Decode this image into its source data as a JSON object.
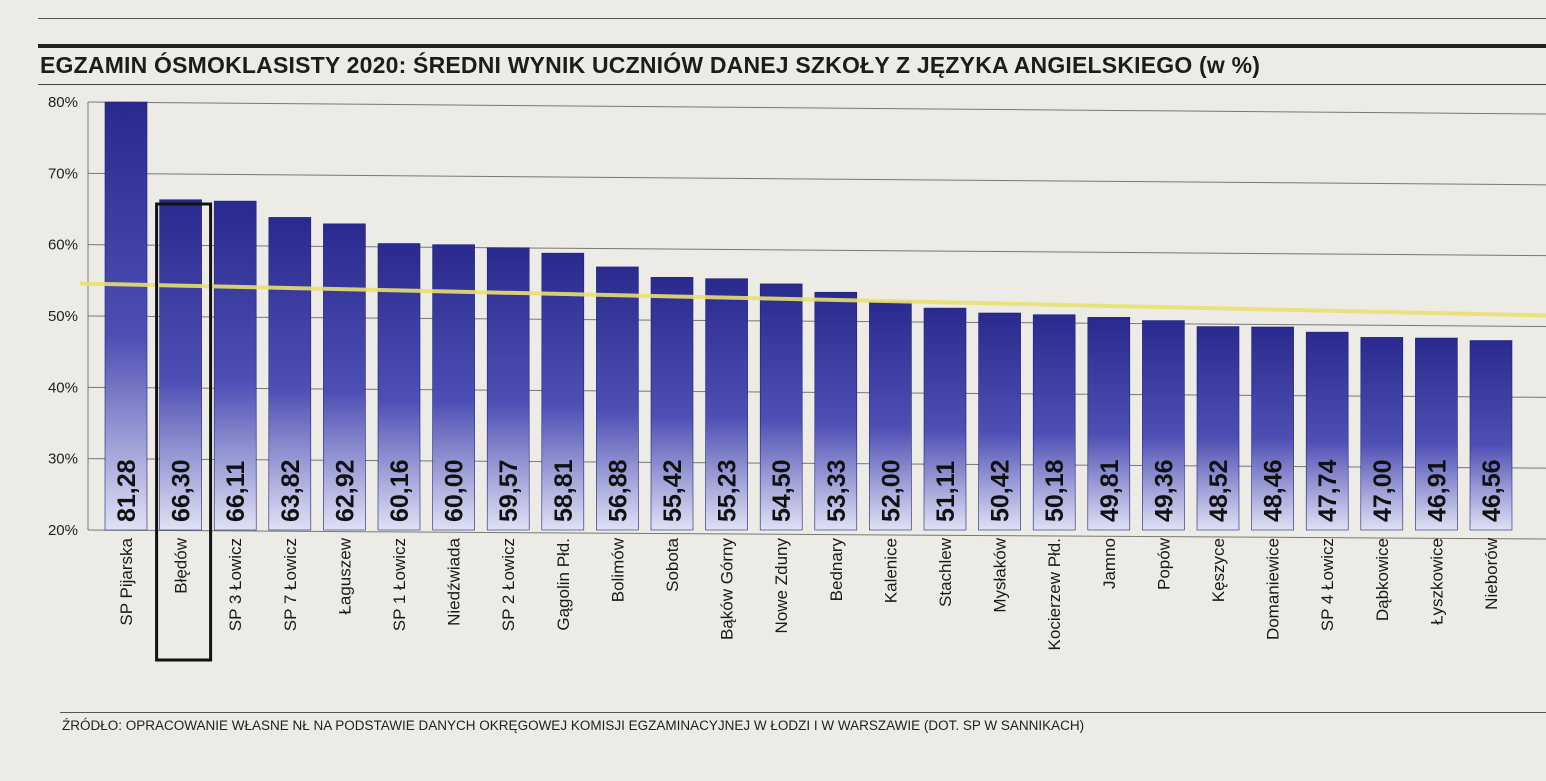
{
  "chart_data": {
    "type": "bar",
    "title": "EGZAMIN ÓSMOKLASISTY 2020: ŚREDNI WYNIK UCZNIÓW DANEJ SZKOŁY Z JĘZYKA ANGIELSKIEGO (w %)",
    "categories": [
      "SP Pijarska",
      "Błędów",
      "SP 3 Łowicz",
      "SP 7 Łowicz",
      "Łaguszew",
      "SP 1 Łowicz",
      "Niedźwiada",
      "SP 2 Łowicz",
      "Gągolin Płd.",
      "Bolimów",
      "Sobota",
      "Bąków Górny",
      "Nowe Zduny",
      "Bednary",
      "Kalenice",
      "Stachlew",
      "Mysłaków",
      "Kocierzew Płd.",
      "Jamno",
      "Popów",
      "Kęszyce",
      "Domaniewice",
      "SP 4 Łowicz",
      "Dąbkowice",
      "Łyszkowice",
      "Nieborów"
    ],
    "values": [
      81.28,
      66.3,
      66.11,
      63.82,
      62.92,
      60.16,
      60.0,
      59.57,
      58.81,
      56.88,
      55.42,
      55.23,
      54.5,
      53.33,
      52.0,
      51.11,
      50.42,
      50.18,
      49.81,
      49.36,
      48.52,
      48.46,
      47.74,
      47.0,
      46.91,
      46.56
    ],
    "value_labels": [
      "81,28",
      "66,30",
      "66,11",
      "63,82",
      "62,92",
      "60,16",
      "60,00",
      "59,57",
      "58,81",
      "56,88",
      "55,42",
      "55,23",
      "54,50",
      "53,33",
      "52,00",
      "51,11",
      "50,42",
      "50,18",
      "49,81",
      "49,36",
      "48,52",
      "48,46",
      "47,74",
      "47,00",
      "46,91",
      "46,56"
    ],
    "yticks": [
      "80%",
      "70%",
      "60%",
      "50%",
      "40%",
      "30%",
      "20%"
    ],
    "ytick_values": [
      80,
      70,
      60,
      50,
      40,
      30,
      20
    ],
    "ylim": [
      20,
      80
    ],
    "highlighted_category": "Błędów",
    "reference_line_value": 54,
    "grid": true
  },
  "source": "ŹRÓDŁO: OPRACOWANIE WŁASNE NŁ NA PODSTAWIE DANYCH OKRĘGOWEJ KOMISJI EGZAMINACYJNEJ W ŁODZI I W WARSZAWIE (DOT. SP W SANNIKACH)",
  "colors": {
    "bar_top": "#2a2a8e",
    "bar_bottom": "#d9dcf2",
    "reference_line": "#e8e070",
    "highlight_box": "#111111",
    "background": "#ecebe6"
  }
}
